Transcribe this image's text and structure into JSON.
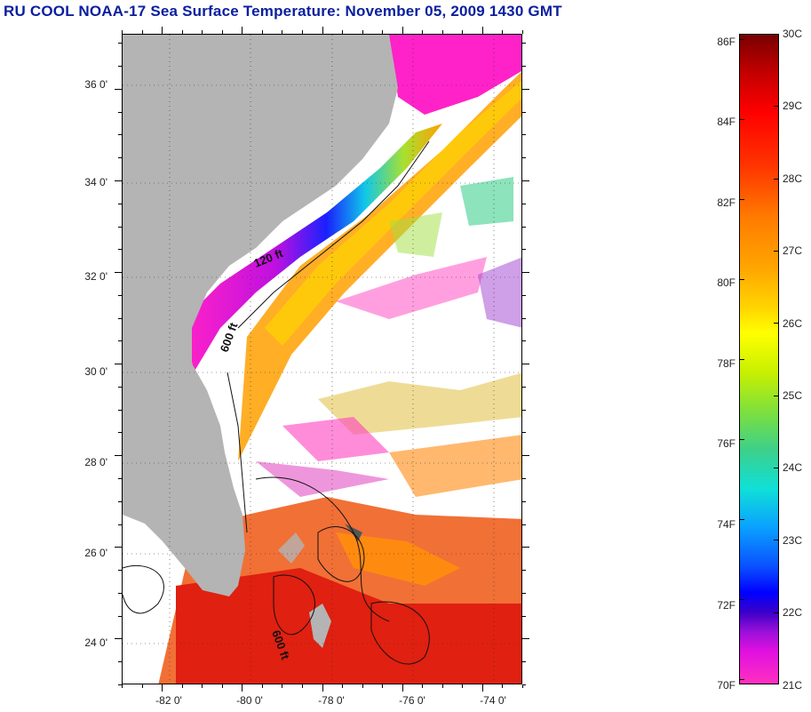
{
  "title": "RU COOL  NOAA-17  Sea Surface Temperature:  November 05, 2009 1430 GMT",
  "map": {
    "lat_labels": [
      "36 0'",
      "34 0'",
      "32 0'",
      "30 0'",
      "28 0'",
      "26 0'",
      "24 0'"
    ],
    "lat_values": [
      36,
      34,
      32,
      30,
      28,
      26,
      24
    ],
    "lon_labels": [
      "-82 0'",
      "-80 0'",
      "-78 0'",
      "-76 0'",
      "-74 0'"
    ],
    "lon_values": [
      -82,
      -80,
      -78,
      -76,
      -74
    ],
    "lat_range": [
      23,
      37.2
    ],
    "lon_range": [
      -83,
      -73
    ],
    "isobaths": [
      "120 ft",
      "600 ft",
      "600 ft"
    ],
    "land_color": "#b4b4b4",
    "no_data_color": "#ffffff"
  },
  "colorbar": {
    "fahrenheit": [
      "86F",
      "84F",
      "82F",
      "80F",
      "78F",
      "76F",
      "74F",
      "72F",
      "70F"
    ],
    "celsius": [
      "30C",
      "29C",
      "28C",
      "27C",
      "26C",
      "25C",
      "24C",
      "23C",
      "22C",
      "21C"
    ],
    "min_c": 21,
    "max_c": 30
  }
}
